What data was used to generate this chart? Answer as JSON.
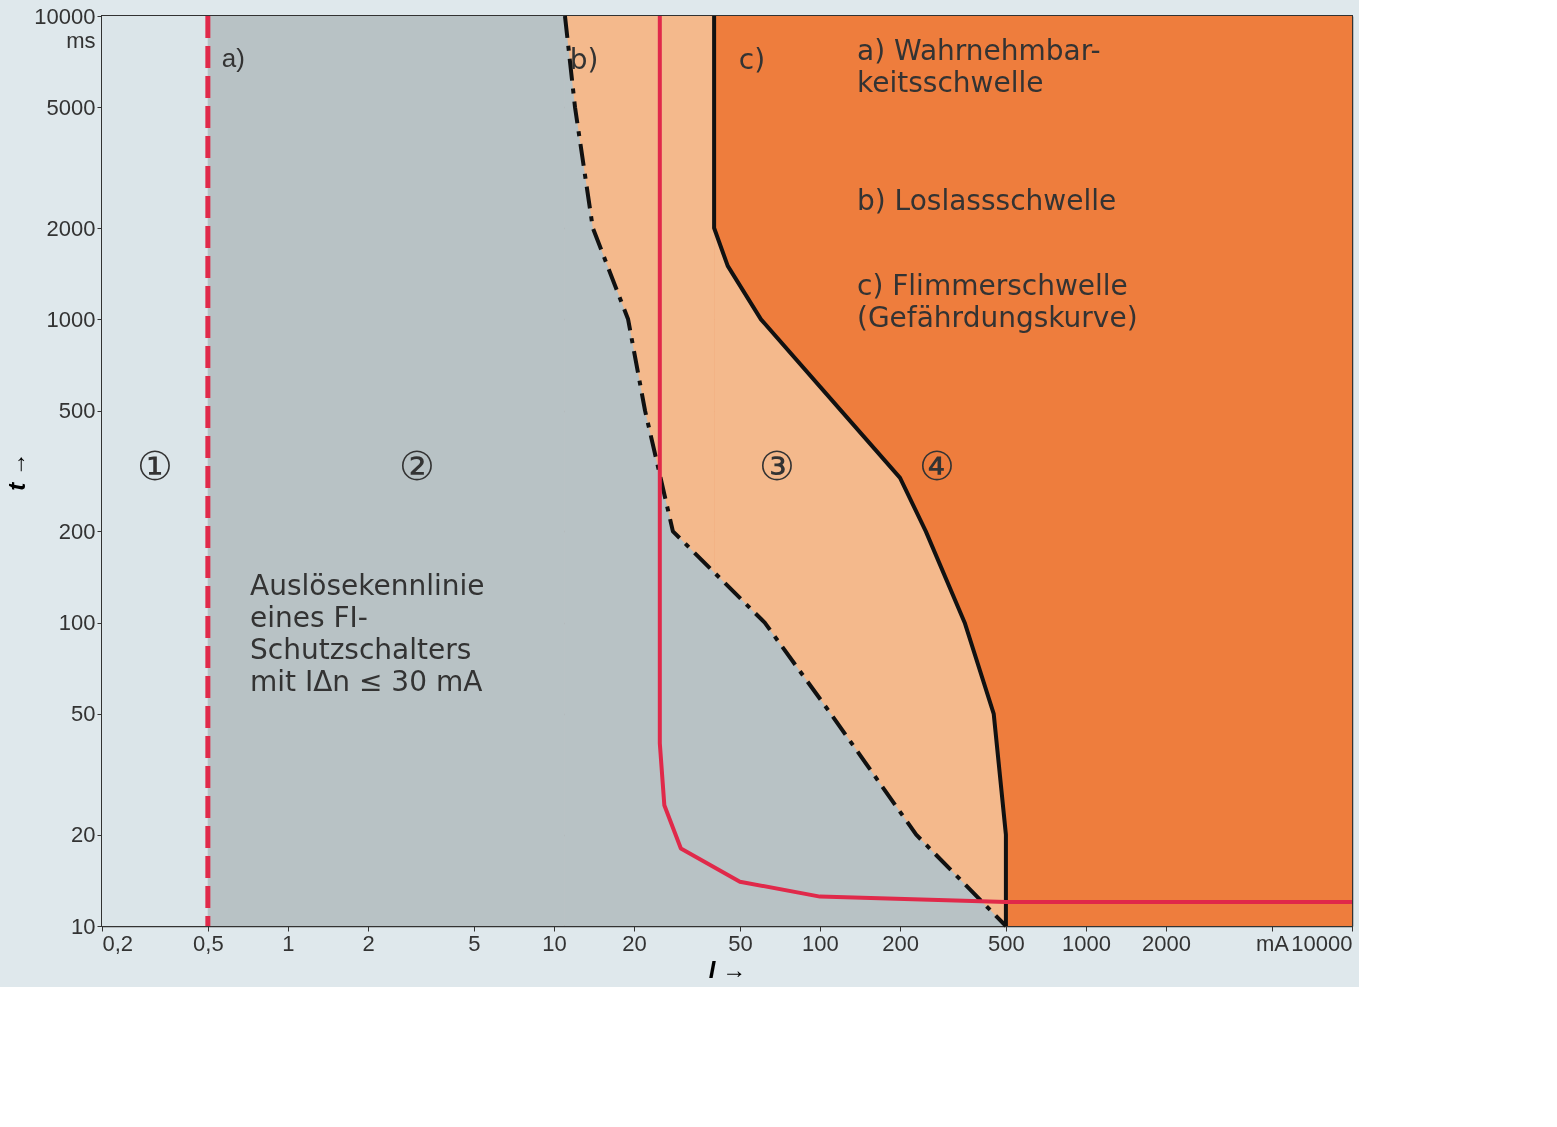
{
  "chart_data": {
    "type": "line",
    "xlabel": "I →",
    "ylabel": "t →",
    "log": "xy",
    "xlim": [
      0.2,
      10000
    ],
    "ylim": [
      10,
      10000
    ],
    "xticks": [
      {
        "value": 0.2,
        "label": "0,2"
      },
      {
        "value": 0.5,
        "label": "0,5"
      },
      1,
      2,
      5,
      10,
      20,
      50,
      100,
      200,
      500,
      1000,
      2000,
      {
        "value": 5000,
        "label": "mA"
      },
      10000
    ],
    "yticks": [
      10,
      20,
      50,
      100,
      200,
      500,
      1000,
      2000,
      5000,
      {
        "value": 10000,
        "label": "10000\nms"
      }
    ],
    "grid": true,
    "bands": [
      {
        "axis": "x",
        "from": 0.2,
        "to": 0.5,
        "label": "①",
        "color": "#dbe5e9"
      },
      {
        "axis": "x",
        "from": 0.5,
        "to": 11,
        "color": "#b8c2c5"
      },
      {
        "axis": "x",
        "from": 11,
        "to": 40,
        "color": "#f4b98c"
      },
      {
        "axis": "x",
        "from": 40,
        "to": 10000,
        "color": "#ee7d3d"
      }
    ],
    "ref_lines": [
      {
        "axis": "x",
        "value": 0.5,
        "label": "a)",
        "color": "#e0294a",
        "line_style": "dashed"
      }
    ],
    "series": [
      {
        "type": "area",
        "color": "#f4b98c",
        "line_style": "solid",
        "x": [
          40,
          40,
          45,
          60,
          120,
          200,
          250,
          350,
          450,
          500,
          500
        ],
        "values": [
          10000,
          2000,
          1500,
          1000,
          500,
          300,
          200,
          100,
          50,
          20,
          10
        ]
      },
      {
        "type": "area",
        "color": "#b8c2c5",
        "line_style": "dashed",
        "x": [
          11,
          12,
          14,
          19,
          22,
          28,
          62,
          110,
          230,
          500
        ],
        "values": [
          10000,
          5000,
          2000,
          1000,
          500,
          200,
          100,
          50,
          20,
          10
        ]
      },
      {
        "color": "#e0294a",
        "line_style": "solid",
        "x": [
          25,
          25,
          26,
          30,
          50,
          100,
          500,
          10000
        ],
        "values": [
          10000,
          40,
          25,
          18,
          14,
          12.5,
          12,
          12
        ]
      }
    ],
    "annotations": [
      "b)",
      "c)",
      "②",
      "③",
      "④",
      "a) Wahrnehmbar-\nkeitsschwelle",
      "b) Loslassschwelle",
      "c) Flimmerschwelle\n(Gefährdungskurve)",
      "Auslösekennlinie\neines FI-\nSchutzschalters\nmit IΔn ≤ 30 mA"
    ]
  }
}
